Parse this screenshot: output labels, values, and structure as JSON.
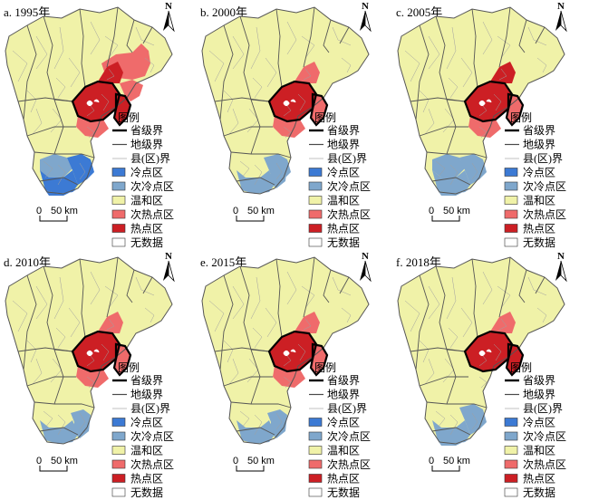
{
  "legend": {
    "title": "图例",
    "items": [
      {
        "key": "province",
        "label": "省级界",
        "kind": "line",
        "color": "#000000",
        "width": 2.4
      },
      {
        "key": "city",
        "label": "地级界",
        "kind": "line",
        "color": "#4a4a4a",
        "width": 1.2
      },
      {
        "key": "county",
        "label": "县(区)界",
        "kind": "line",
        "color": "#9a9a9a",
        "width": 0.6
      },
      {
        "key": "cold",
        "label": "冷点区",
        "kind": "box",
        "color": "#3c7ad4"
      },
      {
        "key": "subcold",
        "label": "次冷点区",
        "kind": "box",
        "color": "#7fa7cc"
      },
      {
        "key": "mild",
        "label": "温和区",
        "kind": "box",
        "color": "#f0f2a8"
      },
      {
        "key": "subhot",
        "label": "次热点区",
        "kind": "box",
        "color": "#ef6b6b"
      },
      {
        "key": "hot",
        "label": "热点区",
        "kind": "box",
        "color": "#cc1f24"
      },
      {
        "key": "nodata",
        "label": "无数据",
        "kind": "box",
        "color": "#ffffff"
      }
    ]
  },
  "scale": {
    "zero": "0",
    "label": "50 km"
  },
  "north": "N",
  "panels": [
    {
      "label": "a. 1995年",
      "hot": [
        "beijing",
        "tianjin",
        "chengde_s"
      ],
      "subhot": [
        "zhangjiakou_e",
        "langfang",
        "tangshan_n"
      ],
      "cold": [
        "xingtai",
        "handan",
        "hengshui_s"
      ],
      "subcold": [
        "shijiazhuang_s"
      ]
    },
    {
      "label": "b. 2000年",
      "hot": [
        "beijing"
      ],
      "subhot": [
        "langfang",
        "chengde_s",
        "tianjin"
      ],
      "cold": [],
      "subcold": [
        "xingtai",
        "handan_e",
        "hengshui_s"
      ]
    },
    {
      "label": "c. 2005年",
      "hot": [
        "beijing",
        "chengde_s"
      ],
      "subhot": [
        "langfang",
        "tianjin"
      ],
      "cold": [],
      "subcold": [
        "shijiazhuang_s",
        "xingtai",
        "handan",
        "hengshui_s"
      ]
    },
    {
      "label": "d. 2010年",
      "hot": [
        "beijing"
      ],
      "subhot": [
        "langfang",
        "chengde_s",
        "tianjin"
      ],
      "cold": [],
      "subcold": [
        "xingtai",
        "handan_e"
      ]
    },
    {
      "label": "e. 2015年",
      "hot": [
        "beijing"
      ],
      "subhot": [
        "langfang",
        "chengde_s",
        "tianjin"
      ],
      "cold": [],
      "subcold": [
        "xingtai",
        "handan_e"
      ]
    },
    {
      "label": "f. 2018年",
      "hot": [
        "beijing",
        "tianjin"
      ],
      "subhot": [
        "chengde_s"
      ],
      "cold": [],
      "subcold": [
        "xingtai",
        "handan",
        "hengshui_s"
      ]
    }
  ]
}
